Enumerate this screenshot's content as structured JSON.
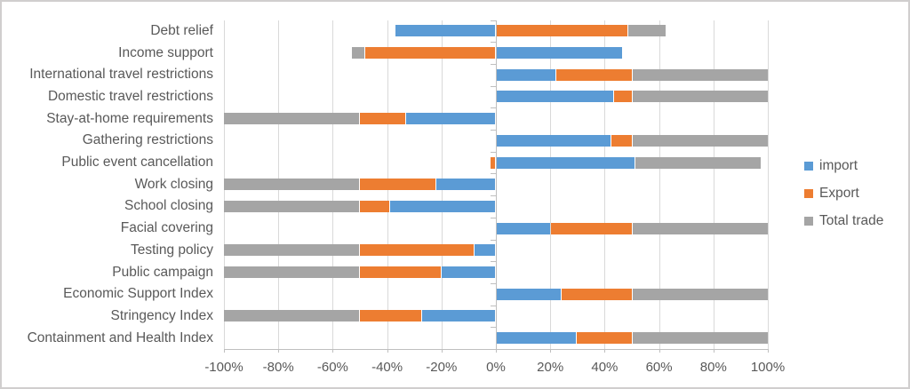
{
  "chart_data": {
    "type": "bar",
    "orientation": "horizontal",
    "stacked": true,
    "title": "",
    "xlabel": "",
    "ylabel": "",
    "grid": true,
    "categories": [
      "Debt relief",
      "Income support",
      "International travel restrictions",
      "Domestic travel restrictions",
      "Stay-at-home requirements",
      "Gathering restrictions",
      "Public event cancellation",
      "Work closing",
      "School closing",
      "Facial covering",
      "Testing policy",
      "Public campaign",
      "Economic Support Index",
      "Stringency Index",
      "Containment and Health Index"
    ],
    "series": [
      {
        "name": "import",
        "color": "#5b9bd5",
        "values": [
          -37,
          46.5,
          22,
          43,
          -33,
          42,
          51,
          -22,
          -39,
          20,
          -8,
          -20,
          24,
          -27,
          29.5
        ]
      },
      {
        "name": "Export",
        "color": "#ed7d31",
        "values": [
          48.5,
          -48,
          28,
          7,
          -17,
          8,
          -2,
          -28,
          -11,
          30,
          -42,
          -30,
          26,
          -23,
          20.5
        ]
      },
      {
        "name": "Total trade",
        "color": "#a5a5a5",
        "values": [
          14,
          -5,
          50,
          50,
          -50,
          50,
          46.5,
          -50,
          -50,
          50,
          -50,
          -50,
          50,
          -50,
          50
        ]
      }
    ],
    "x_axis": {
      "min": -100,
      "max": 100,
      "tick_step": 20,
      "ticks": [
        "-100%",
        "-80%",
        "-60%",
        "-40%",
        "-20%",
        "0%",
        "20%",
        "40%",
        "60%",
        "80%",
        "100%"
      ]
    },
    "legend": {
      "position": "right",
      "entries": [
        "import",
        "Export",
        "Total trade"
      ]
    }
  },
  "colors": {
    "grid": "#d9d9d9",
    "axis": "#bfbfbf",
    "text": "#595959",
    "frame_border": "#d0cece",
    "background": "#ffffff"
  }
}
